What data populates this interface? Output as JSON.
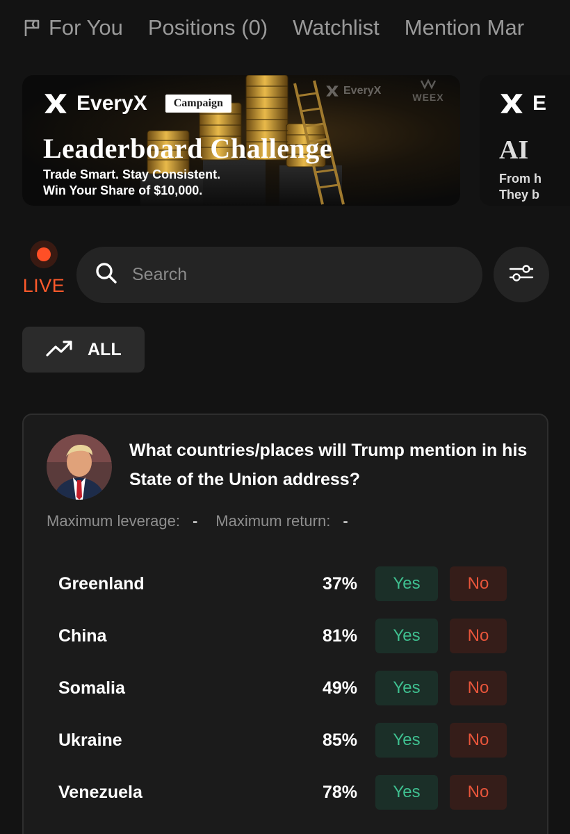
{
  "tabs": [
    {
      "label": "For You"
    },
    {
      "label": "Positions (0)"
    },
    {
      "label": "Watchlist"
    },
    {
      "label": "Mention Mar"
    }
  ],
  "banners": [
    {
      "brand": "EveryX",
      "tag": "Campaign",
      "title": "Leaderboard Challenge",
      "subtitle_line1": "Trade Smart. Stay Consistent.",
      "subtitle_line2": "Win Your Share of $10,000.",
      "watermark_brand": "EveryX",
      "watermark_partner": "WEEX"
    },
    {
      "brand": "E",
      "title": "AI",
      "subtitle_line1": "From h",
      "subtitle_line2": "They b"
    }
  ],
  "live": {
    "label": "LIVE"
  },
  "search": {
    "placeholder": "Search",
    "value": ""
  },
  "filter": {
    "label": "ALL"
  },
  "market": {
    "question": "What countries/places will Trump mention in his State of the Union address?",
    "max_leverage_label": "Maximum leverage:",
    "max_leverage_value": "-",
    "max_return_label": "Maximum return:",
    "max_return_value": "-",
    "outcomes": [
      {
        "name": "Greenland",
        "probability": "37%",
        "yes": "Yes",
        "no": "No"
      },
      {
        "name": "China",
        "probability": "81%",
        "yes": "Yes",
        "no": "No"
      },
      {
        "name": "Somalia",
        "probability": "49%",
        "yes": "Yes",
        "no": "No"
      },
      {
        "name": "Ukraine",
        "probability": "85%",
        "yes": "Yes",
        "no": "No"
      },
      {
        "name": "Venezuela",
        "probability": "78%",
        "yes": "Yes",
        "no": "No"
      }
    ]
  },
  "colors": {
    "background": "#131313",
    "live_accent": "#ff5a2b",
    "yes_text": "#3fc090",
    "no_text": "#e8553b"
  }
}
